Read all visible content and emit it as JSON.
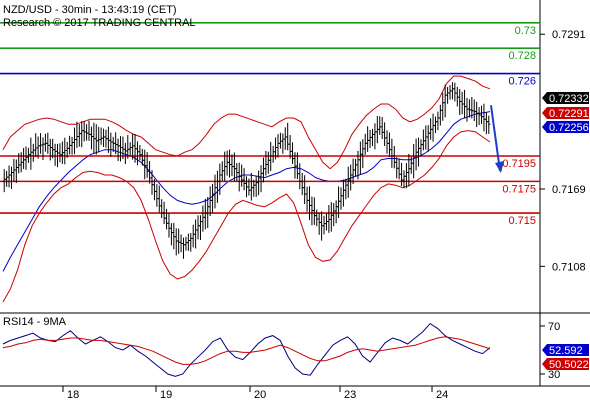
{
  "header": {
    "title": "NZD/USD - 30min - 13:43:19 (CET)",
    "subtitle": "Research © 2017 TRADING CENTRAL"
  },
  "colors": {
    "target_line": "#1a9a1a",
    "resistance_line": "#0000cc",
    "support_line": "#cc0000",
    "bollinger": "#cc0000",
    "moving_average": "#0000cc",
    "price_bars": "#000000",
    "rsi": "#000080",
    "rsi_ma": "#cc0000",
    "arrow": "#1a3ec8",
    "badge_bid": "#000000",
    "badge_mid": "#cc0000",
    "badge_ask": "#0000cc"
  },
  "chart_data": [
    {
      "type": "ohlc",
      "name": "price-panel",
      "title": "NZD/USD - 30min - 13:43:19 (CET)",
      "ylim": [
        0.7072,
        0.7318
      ],
      "ytick_labels": [
        "0.7291",
        "0.7169",
        "0.7108"
      ],
      "yticks": [
        0.7291,
        0.7169,
        0.7108
      ],
      "xtick_labels": [
        "18",
        "19",
        "20",
        "23",
        "24"
      ],
      "grid": false,
      "levels": [
        {
          "value": 0.73,
          "label": "0.73",
          "role": "target"
        },
        {
          "value": 0.728,
          "label": "0.728",
          "role": "target"
        },
        {
          "value": 0.726,
          "label": "0.726",
          "role": "resistance"
        },
        {
          "value": 0.7195,
          "label": "0.7195",
          "role": "support"
        },
        {
          "value": 0.7175,
          "label": "0.7175",
          "role": "support"
        },
        {
          "value": 0.715,
          "label": "0.715",
          "role": "support"
        }
      ],
      "badges": [
        {
          "value": 0.72332,
          "label": "0.72332",
          "role": "bid"
        },
        {
          "value": 0.72291,
          "label": "0.72291",
          "role": "mid"
        },
        {
          "value": 0.72256,
          "label": "0.72256",
          "role": "ask"
        }
      ],
      "close_series": [
        0.7175,
        0.718,
        0.7186,
        0.7192,
        0.7198,
        0.7203,
        0.7205,
        0.72,
        0.7196,
        0.7201,
        0.7208,
        0.7215,
        0.7212,
        0.7207,
        0.721,
        0.7206,
        0.7203,
        0.7199,
        0.7203,
        0.7196,
        0.7183,
        0.7167,
        0.715,
        0.7138,
        0.7128,
        0.7125,
        0.713,
        0.714,
        0.715,
        0.7165,
        0.718,
        0.719,
        0.7185,
        0.7176,
        0.7168,
        0.7174,
        0.7185,
        0.7195,
        0.7205,
        0.721,
        0.7193,
        0.7175,
        0.716,
        0.7148,
        0.714,
        0.7145,
        0.7155,
        0.7168,
        0.718,
        0.7192,
        0.7205,
        0.7212,
        0.7218,
        0.7205,
        0.719,
        0.7176,
        0.7185,
        0.7198,
        0.7207,
        0.7216,
        0.7225,
        0.7243,
        0.7248,
        0.7238,
        0.7232,
        0.723,
        0.7226,
        0.722
      ],
      "bollinger_upper": [
        0.72,
        0.721,
        0.7215,
        0.722,
        0.7222,
        0.7224,
        0.7225,
        0.7224,
        0.7222,
        0.722,
        0.722,
        0.7222,
        0.7224,
        0.7224,
        0.7224,
        0.7222,
        0.7219,
        0.7215,
        0.7212,
        0.721,
        0.7205,
        0.72,
        0.7198,
        0.7196,
        0.7195,
        0.7198,
        0.72,
        0.7205,
        0.7212,
        0.722,
        0.7225,
        0.7228,
        0.7228,
        0.7226,
        0.7224,
        0.7222,
        0.722,
        0.7218,
        0.7222,
        0.7225,
        0.7225,
        0.7222,
        0.721,
        0.72,
        0.719,
        0.7185,
        0.719,
        0.72,
        0.7212,
        0.722,
        0.7227,
        0.7232,
        0.7236,
        0.7236,
        0.7232,
        0.7225,
        0.7222,
        0.7224,
        0.7228,
        0.7233,
        0.724,
        0.7252,
        0.7258,
        0.7258,
        0.7256,
        0.7254,
        0.725,
        0.7248
      ],
      "bollinger_lower": [
        0.708,
        0.709,
        0.7105,
        0.7125,
        0.714,
        0.715,
        0.7158,
        0.7165,
        0.717,
        0.7173,
        0.7178,
        0.7182,
        0.7183,
        0.7182,
        0.718,
        0.718,
        0.7178,
        0.7175,
        0.717,
        0.716,
        0.7145,
        0.7128,
        0.7112,
        0.7102,
        0.7098,
        0.71,
        0.7105,
        0.7112,
        0.712,
        0.713,
        0.714,
        0.715,
        0.7157,
        0.716,
        0.7158,
        0.7156,
        0.7155,
        0.7158,
        0.7162,
        0.7165,
        0.7158,
        0.7142,
        0.7125,
        0.7115,
        0.7112,
        0.7113,
        0.712,
        0.713,
        0.714,
        0.7148,
        0.7156,
        0.7164,
        0.717,
        0.7173,
        0.7172,
        0.717,
        0.7172,
        0.7176,
        0.718,
        0.7186,
        0.7193,
        0.7203,
        0.721,
        0.7214,
        0.7215,
        0.7214,
        0.721,
        0.7206
      ],
      "moving_average": [
        0.7104,
        0.7115,
        0.7125,
        0.7135,
        0.7145,
        0.7155,
        0.7163,
        0.717,
        0.7176,
        0.7182,
        0.7187,
        0.7192,
        0.7196,
        0.7198,
        0.72,
        0.72,
        0.7198,
        0.7196,
        0.7194,
        0.719,
        0.7184,
        0.7177,
        0.717,
        0.7164,
        0.716,
        0.7158,
        0.7157,
        0.7158,
        0.716,
        0.7164,
        0.717,
        0.7175,
        0.7178,
        0.718,
        0.718,
        0.7179,
        0.7178,
        0.718,
        0.7182,
        0.7185,
        0.7186,
        0.7185,
        0.7182,
        0.7178,
        0.7176,
        0.7175,
        0.7175,
        0.7176,
        0.7178,
        0.718,
        0.7182,
        0.7186,
        0.7192,
        0.7193,
        0.7193,
        0.7192,
        0.7192,
        0.7194,
        0.7197,
        0.7201,
        0.7206,
        0.7213,
        0.722,
        0.7224,
        0.7226,
        0.7228,
        0.7229,
        0.723
      ],
      "forecast_arrow": {
        "from": 0.7235,
        "to": 0.718
      }
    },
    {
      "type": "line",
      "name": "rsi-panel",
      "title": "RSI14 - 9MA",
      "ylim": [
        20,
        80
      ],
      "ytick_labels": [
        "70",
        "30"
      ],
      "yticks": [
        70,
        30
      ],
      "xtick_labels": [
        "18",
        "19",
        "20",
        "23",
        "24"
      ],
      "grid": false,
      "badges": [
        {
          "value": 52.592,
          "label": "52.592",
          "role": "rsi"
        },
        {
          "value": 50.5022,
          "label": "50.5022",
          "role": "rsi-ma"
        }
      ],
      "series": [
        {
          "values": [
            55,
            58,
            60,
            62,
            64,
            60,
            58,
            57,
            62,
            66,
            60,
            55,
            58,
            61,
            57,
            52,
            50,
            54,
            49,
            45,
            40,
            35,
            30,
            28,
            30,
            38,
            44,
            50,
            57,
            60,
            50,
            44,
            42,
            48,
            55,
            60,
            62,
            58,
            45,
            35,
            30,
            29,
            38,
            46,
            54,
            58,
            61,
            55,
            45,
            40,
            48,
            56,
            60,
            58,
            55,
            60,
            65,
            72,
            68,
            62,
            58,
            55,
            52,
            49,
            47,
            52
          ]
        },
        {
          "values": [
            52,
            53,
            55,
            56,
            58,
            59,
            58,
            58,
            59,
            60,
            60,
            59,
            58,
            58,
            57,
            56,
            55,
            54,
            53,
            51,
            49,
            46,
            43,
            40,
            38,
            38,
            39,
            41,
            44,
            47,
            49,
            49,
            48,
            48,
            49,
            50,
            52,
            54,
            52,
            49,
            46,
            43,
            41,
            41,
            43,
            45,
            48,
            50,
            51,
            50,
            49,
            50,
            51,
            52,
            53,
            54,
            56,
            58,
            60,
            61,
            60,
            59,
            57,
            55,
            53,
            51
          ]
        }
      ]
    }
  ]
}
